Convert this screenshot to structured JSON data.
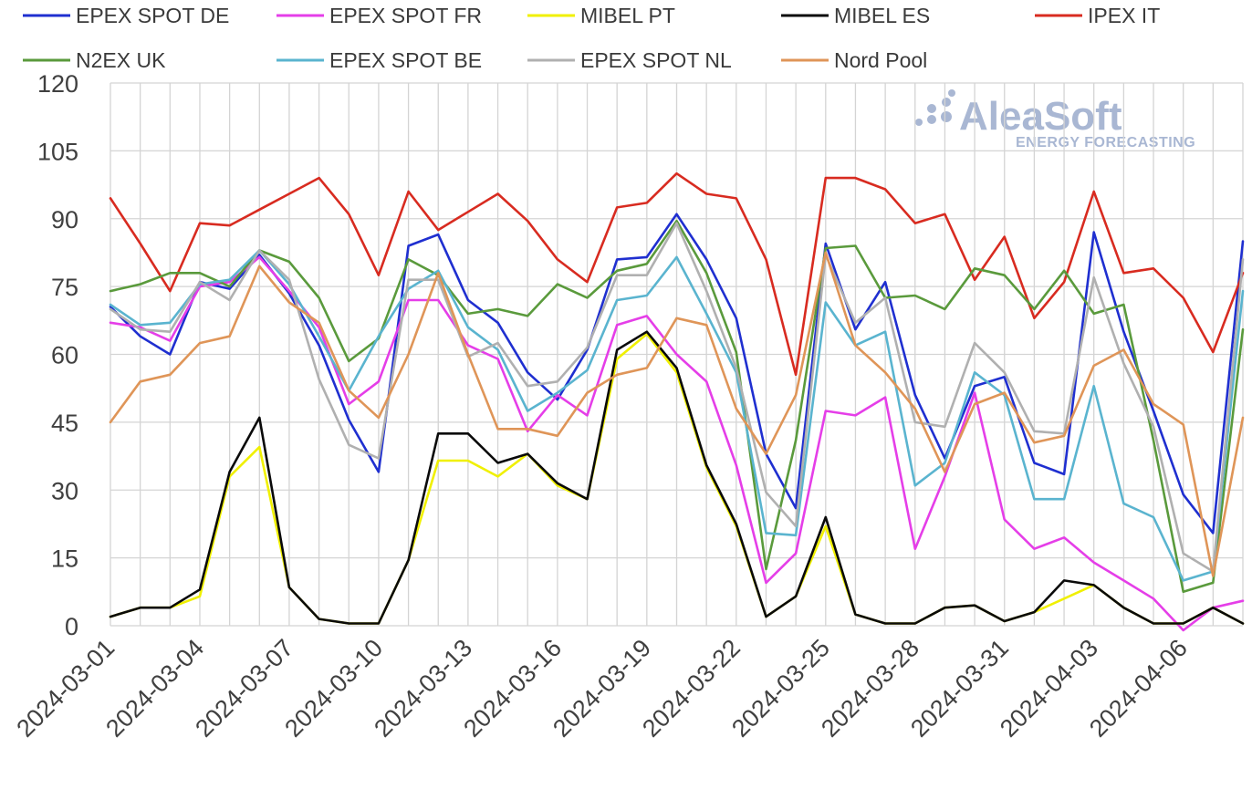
{
  "chart_data": {
    "type": "line",
    "title": "",
    "xlabel": "",
    "ylabel": "",
    "ylim": [
      0,
      120
    ],
    "yticks": [
      0,
      15,
      30,
      45,
      60,
      75,
      90,
      105,
      120
    ],
    "grid": true,
    "legend": "top",
    "watermark": {
      "brand": "AleaSoft",
      "tagline": "ENERGY FORECASTING"
    },
    "x_tick_labels": [
      "2024-03-01",
      "2024-03-04",
      "2024-03-07",
      "2024-03-10",
      "2024-03-13",
      "2024-03-16",
      "2024-03-19",
      "2024-03-22",
      "2024-03-25",
      "2024-03-28",
      "2024-03-31",
      "2024-04-03",
      "2024-04-06"
    ],
    "x": [
      "2024-03-01",
      "2024-03-02",
      "2024-03-03",
      "2024-03-04",
      "2024-03-05",
      "2024-03-06",
      "2024-03-07",
      "2024-03-08",
      "2024-03-09",
      "2024-03-10",
      "2024-03-11",
      "2024-03-12",
      "2024-03-13",
      "2024-03-14",
      "2024-03-15",
      "2024-03-16",
      "2024-03-17",
      "2024-03-18",
      "2024-03-19",
      "2024-03-20",
      "2024-03-21",
      "2024-03-22",
      "2024-03-23",
      "2024-03-24",
      "2024-03-25",
      "2024-03-26",
      "2024-03-27",
      "2024-03-28",
      "2024-03-29",
      "2024-03-30",
      "2024-03-31",
      "2024-04-01",
      "2024-04-02",
      "2024-04-03",
      "2024-04-04",
      "2024-04-05",
      "2024-04-06",
      "2024-04-07",
      "2024-04-08"
    ],
    "series": [
      {
        "name": "EPEX SPOT DE",
        "color": "#1f2fd0",
        "values": [
          70.5,
          64,
          60,
          76,
          74.5,
          82,
          73.5,
          62,
          45.5,
          34,
          84,
          86.5,
          72,
          67,
          56,
          50,
          61,
          81,
          81.5,
          91,
          81,
          68,
          38,
          26,
          84.5,
          65.5,
          76,
          51,
          37,
          53,
          55,
          36,
          33.5,
          87,
          65,
          47.5,
          29,
          20.5,
          85
        ]
      },
      {
        "name": "EPEX SPOT FR",
        "color": "#e53ee8",
        "values": [
          67,
          66,
          63,
          75,
          76,
          81.5,
          74,
          66,
          49,
          54,
          72,
          72,
          62,
          59,
          43,
          51,
          46.5,
          66.5,
          68.5,
          60,
          54,
          35.5,
          9.5,
          16,
          47.5,
          46.5,
          50.5,
          17,
          33,
          51.5,
          23.5,
          17,
          19.5,
          14,
          10,
          6,
          -1,
          4,
          5.5
        ]
      },
      {
        "name": "MIBEL PT",
        "color": "#f0f000",
        "values": [
          2,
          4,
          4,
          6.5,
          33,
          39.5,
          8.5,
          1.5,
          0.5,
          0.5,
          14.5,
          36.5,
          36.5,
          33,
          38,
          31,
          28,
          59,
          64.5,
          56,
          35,
          22,
          2,
          6.5,
          22,
          2.5,
          0.5,
          0.5,
          4,
          4.5,
          1,
          3,
          6,
          9,
          4,
          0.5,
          0.5,
          4,
          0.5
        ]
      },
      {
        "name": "MIBEL ES",
        "color": "#0a0a0a",
        "values": [
          2,
          4,
          4,
          8,
          34,
          46,
          8.5,
          1.5,
          0.5,
          0.5,
          14.5,
          42.5,
          42.5,
          36,
          38,
          31.5,
          28,
          61,
          65,
          57,
          35.5,
          22.5,
          2,
          6.5,
          24,
          2.5,
          0.5,
          0.5,
          4,
          4.5,
          1,
          3,
          10,
          9,
          4,
          0.5,
          0.5,
          4,
          0.5
        ]
      },
      {
        "name": "IPEX IT",
        "color": "#d82b20",
        "values": [
          94.5,
          84.5,
          74,
          89,
          88.5,
          92,
          95.5,
          99,
          91,
          77.5,
          96,
          87.5,
          91.5,
          95.5,
          89.5,
          81,
          76,
          92.5,
          93.5,
          100,
          95.5,
          94.5,
          81,
          55.5,
          99,
          99,
          96.5,
          89,
          91,
          76.5,
          86,
          68,
          76,
          96,
          78,
          79,
          72.5,
          60.5,
          78
        ]
      },
      {
        "name": "N2EX UK",
        "color": "#5a9a3c",
        "values": [
          74,
          75.5,
          78,
          78,
          75,
          83,
          80.5,
          72.5,
          58.5,
          63.5,
          81,
          77.5,
          69,
          70,
          68.5,
          75.5,
          72.5,
          78.5,
          80,
          89.5,
          78,
          60.5,
          12.5,
          41,
          83.5,
          84,
          72.5,
          73,
          70,
          79,
          77.5,
          70,
          78.5,
          69,
          71,
          41,
          7.5,
          9.5,
          65.5
        ]
      },
      {
        "name": "EPEX SPOT BE",
        "color": "#5ab4cf",
        "values": [
          71,
          66.5,
          67,
          75.5,
          76.5,
          83,
          75.5,
          64,
          52,
          64,
          74.5,
          78.5,
          66,
          61,
          47.5,
          51.5,
          56.5,
          72,
          73,
          81.5,
          69,
          56,
          20.5,
          20,
          71.5,
          62,
          65,
          31,
          36,
          56,
          51,
          28,
          28,
          53,
          27,
          24,
          10,
          12,
          74
        ]
      },
      {
        "name": "EPEX SPOT NL",
        "color": "#b0b0b0",
        "values": [
          70,
          65.5,
          65,
          76,
          72,
          83,
          76.5,
          54.5,
          40,
          37,
          76.5,
          76.5,
          59.5,
          62.5,
          53,
          54,
          61.5,
          77.5,
          77.5,
          89,
          74,
          57,
          29.5,
          22,
          82,
          67,
          72.5,
          45,
          44,
          62.5,
          56,
          43,
          42.5,
          77,
          58,
          44,
          16,
          12,
          81
        ]
      },
      {
        "name": "Nord Pool",
        "color": "#df9558",
        "values": [
          45,
          54,
          55.5,
          62.5,
          64,
          79.5,
          71.5,
          67,
          52,
          46,
          60,
          78,
          60,
          43.5,
          43.5,
          42,
          51.5,
          55.5,
          57,
          68,
          66.5,
          48,
          38,
          51,
          82.5,
          62,
          56,
          48,
          34,
          49,
          51.5,
          40.5,
          42,
          57.5,
          61,
          49,
          44.5,
          11,
          46
        ]
      }
    ]
  }
}
